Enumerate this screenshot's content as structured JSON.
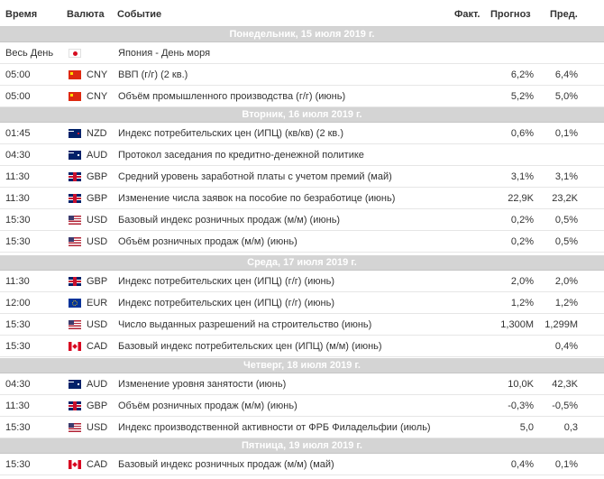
{
  "header": {
    "time": "Время",
    "currency": "Валюта",
    "event": "Событие",
    "actual": "Факт.",
    "forecast": "Прогноз",
    "previous": "Пред."
  },
  "days": [
    {
      "title": "Понедельник, 15 июля 2019 г.",
      "events": [
        {
          "time": "Весь День",
          "flag": "japan-flag-icon",
          "currency": "",
          "event": "Япония - День моря",
          "actual": "",
          "forecast": "",
          "previous": ""
        },
        {
          "time": "05:00",
          "flag": "china-flag-icon",
          "currency": "CNY",
          "event": "ВВП (г/г) (2 кв.)",
          "actual": "",
          "forecast": "6,2%",
          "previous": "6,4%"
        },
        {
          "time": "05:00",
          "flag": "china-flag-icon",
          "currency": "CNY",
          "event": "Объём промышленного производства (г/г) (июнь)",
          "actual": "",
          "forecast": "5,2%",
          "previous": "5,0%"
        }
      ]
    },
    {
      "title": "Вторник, 16 июля 2019 г.",
      "events": [
        {
          "time": "01:45",
          "flag": "new-zealand-flag-icon",
          "currency": "NZD",
          "event": "Индекс потребительских цен (ИПЦ) (кв/кв) (2 кв.)",
          "actual": "",
          "forecast": "0,6%",
          "previous": "0,1%"
        },
        {
          "time": "04:30",
          "flag": "australia-flag-icon",
          "currency": "AUD",
          "event": "Протокол заседания по кредитно-денежной политике",
          "actual": "",
          "forecast": "",
          "previous": ""
        },
        {
          "time": "11:30",
          "flag": "uk-flag-icon",
          "currency": "GBP",
          "event": "Средний уровень заработной платы с учетом премий (май)",
          "actual": "",
          "forecast": "3,1%",
          "previous": "3,1%"
        },
        {
          "time": "11:30",
          "flag": "uk-flag-icon",
          "currency": "GBP",
          "event": "Изменение числа заявок на пособие по безработице (июнь)",
          "actual": "",
          "forecast": "22,9K",
          "previous": "23,2K"
        },
        {
          "time": "15:30",
          "flag": "usa-flag-icon",
          "currency": "USD",
          "event": "Базовый индекс розничных продаж (м/м) (июнь)",
          "actual": "",
          "forecast": "0,2%",
          "previous": "0,5%"
        },
        {
          "time": "15:30",
          "flag": "usa-flag-icon",
          "currency": "USD",
          "event": "Объём розничных продаж (м/м) (июнь)",
          "actual": "",
          "forecast": "0,2%",
          "previous": "0,5%"
        }
      ]
    },
    {
      "title": "Среда, 17 июля 2019 г.",
      "events": [
        {
          "time": "11:30",
          "flag": "uk-flag-icon",
          "currency": "GBP",
          "event": "Индекс потребительских цен (ИПЦ) (г/г) (июнь)",
          "actual": "",
          "forecast": "2,0%",
          "previous": "2,0%"
        },
        {
          "time": "12:00",
          "flag": "eu-flag-icon",
          "currency": "EUR",
          "event": "Индекс потребительских цен (ИПЦ) (г/г) (июнь)",
          "actual": "",
          "forecast": "1,2%",
          "previous": "1,2%"
        },
        {
          "time": "15:30",
          "flag": "usa-flag-icon",
          "currency": "USD",
          "event": "Число выданных разрешений на строительство (июнь)",
          "actual": "",
          "forecast": "1,300M",
          "previous": "1,299M"
        },
        {
          "time": "15:30",
          "flag": "canada-flag-icon",
          "currency": "CAD",
          "event": "Базовый индекс потребительских цен (ИПЦ) (м/м) (июнь)",
          "actual": "",
          "forecast": "",
          "previous": "0,4%"
        }
      ]
    },
    {
      "title": "Четверг, 18 июля 2019 г.",
      "events": [
        {
          "time": "04:30",
          "flag": "australia-flag-icon",
          "currency": "AUD",
          "event": "Изменение уровня занятости (июнь)",
          "actual": "",
          "forecast": "10,0K",
          "previous": "42,3K"
        },
        {
          "time": "11:30",
          "flag": "uk-flag-icon",
          "currency": "GBP",
          "event": "Объём розничных продаж (м/м) (июнь)",
          "actual": "",
          "forecast": "-0,3%",
          "previous": "-0,5%"
        },
        {
          "time": "15:30",
          "flag": "usa-flag-icon",
          "currency": "USD",
          "event": "Индекс производственной активности от ФРБ Филадельфии (июль)",
          "actual": "",
          "forecast": "5,0",
          "previous": "0,3"
        }
      ]
    },
    {
      "title": "Пятница, 19 июля 2019 г.",
      "events": [
        {
          "time": "15:30",
          "flag": "canada-flag-icon",
          "currency": "CAD",
          "event": "Базовый индекс розничных продаж (м/м) (май)",
          "actual": "",
          "forecast": "0,4%",
          "previous": "0,1%"
        }
      ]
    }
  ]
}
